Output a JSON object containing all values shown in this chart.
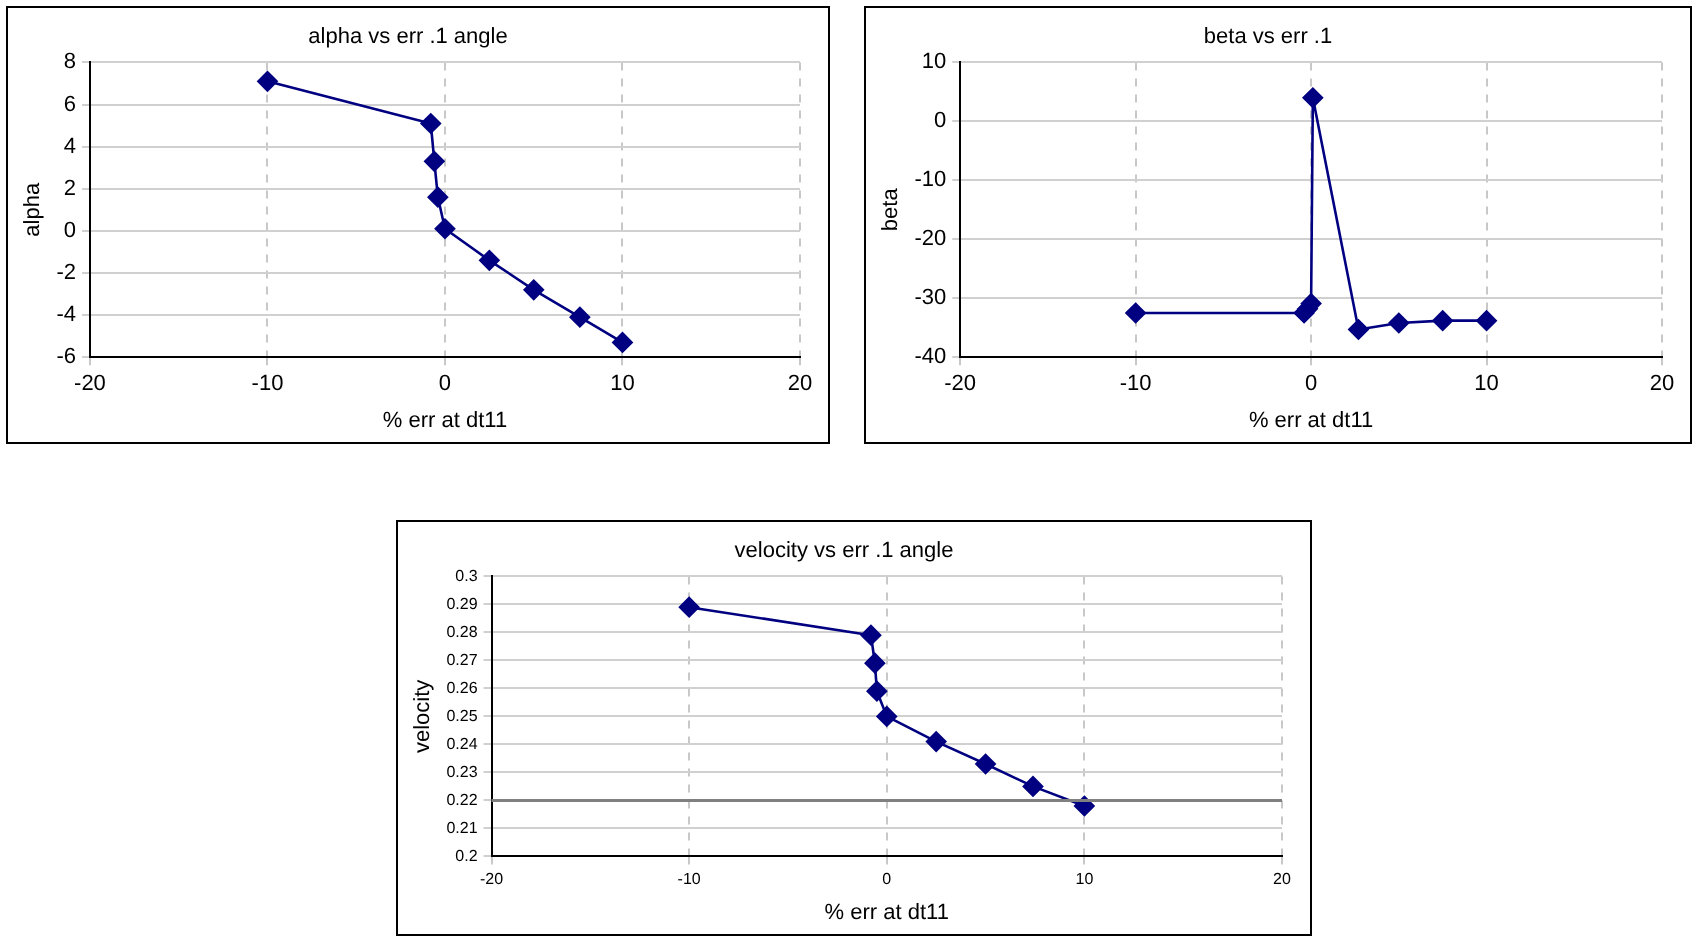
{
  "chart_data": [
    {
      "type": "line",
      "title": "alpha vs err .1 angle",
      "xlabel": "% err at dt11",
      "ylabel": "alpha",
      "x": [
        -10,
        -0.8,
        -0.6,
        -0.4,
        0,
        2.5,
        5,
        7.6,
        10
      ],
      "series": [
        {
          "color": "#000080",
          "values": [
            7.1,
            5.1,
            3.3,
            1.6,
            0.1,
            -1.4,
            -2.8,
            -4.1,
            -5.3
          ]
        }
      ],
      "xlim": [
        -20,
        20
      ],
      "xticks": [
        -20,
        -10,
        0,
        10,
        20
      ],
      "ylim": [
        -6,
        8
      ],
      "yticks": [
        -6,
        -4,
        -2,
        0,
        2,
        4,
        6,
        8
      ],
      "grid": true,
      "marker": "diamond",
      "line_style": "solid",
      "legend": false
    },
    {
      "type": "line",
      "title": "beta vs err .1",
      "xlabel": "% err at dt11",
      "ylabel": "beta",
      "x": [
        -10,
        -0.4,
        -0.2,
        0,
        0.1,
        2.7,
        5,
        7.5,
        10
      ],
      "series": [
        {
          "color": "#000080",
          "values": [
            -32.5,
            -32.5,
            -31.8,
            -30.9,
            4,
            -35.3,
            -34.2,
            -33.8,
            -33.8
          ]
        }
      ],
      "xlim": [
        -20,
        20
      ],
      "xticks": [
        -20,
        -10,
        0,
        10,
        20
      ],
      "ylim": [
        -40,
        10
      ],
      "yticks": [
        -40,
        -30,
        -20,
        -10,
        0,
        10
      ],
      "grid": true,
      "marker": "diamond",
      "line_style": "solid",
      "legend": false
    },
    {
      "type": "line",
      "title": "velocity vs err .1 angle",
      "xlabel": "% err at dt11",
      "ylabel": "velocity",
      "x": [
        -10,
        -0.8,
        -0.6,
        -0.5,
        0,
        2.5,
        5,
        7.4,
        10
      ],
      "series": [
        {
          "color": "#000080",
          "values": [
            0.289,
            0.279,
            0.269,
            0.259,
            0.25,
            0.241,
            0.233,
            0.225,
            0.218
          ]
        }
      ],
      "xlim": [
        -20,
        20
      ],
      "xticks": [
        -20,
        -10,
        0,
        10,
        20
      ],
      "ylim": [
        0.2,
        0.3
      ],
      "yticks": [
        0.2,
        0.21,
        0.22,
        0.23,
        0.24,
        0.25,
        0.26,
        0.27,
        0.28,
        0.29,
        0.3
      ],
      "ref_lines": [
        {
          "axis": "y",
          "value": 0.22,
          "color": "#808080"
        }
      ],
      "grid": true,
      "marker": "diamond",
      "line_style": "solid",
      "legend": false
    }
  ]
}
